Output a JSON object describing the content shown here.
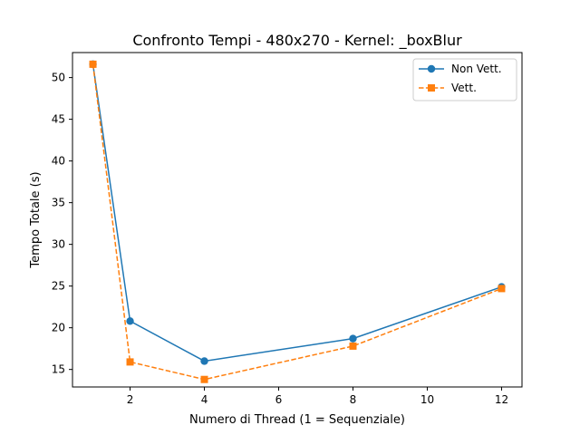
{
  "chart_data": {
    "type": "line",
    "title": "Confronto Tempi - 480x270 - Kernel: _boxBlur",
    "xlabel": "Numero di Thread (1 = Sequenziale)",
    "ylabel": "Tempo Totale (s)",
    "x": [
      1,
      2,
      4,
      8,
      12
    ],
    "xlim": [
      0.45,
      12.55
    ],
    "ylim": [
      12.9,
      53.0
    ],
    "xticks": [
      2,
      4,
      6,
      8,
      10,
      12
    ],
    "yticks": [
      15,
      20,
      25,
      30,
      35,
      40,
      45,
      50
    ],
    "grid": false,
    "legend_position": "top-right",
    "series": [
      {
        "name": "Non Vett.",
        "values": [
          51.6,
          20.8,
          16.0,
          18.7,
          24.9
        ],
        "color": "#1f77b4",
        "marker": "circle",
        "linestyle": "solid"
      },
      {
        "name": "Vett.",
        "values": [
          51.6,
          15.9,
          13.8,
          17.8,
          24.7
        ],
        "color": "#ff7f0e",
        "marker": "square",
        "linestyle": "dashed"
      }
    ]
  }
}
